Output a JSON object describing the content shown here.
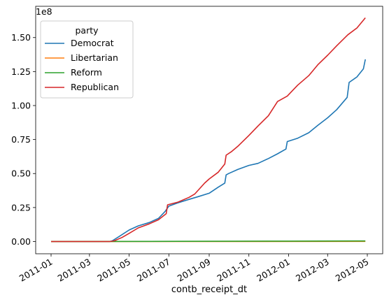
{
  "chart_data": {
    "type": "line",
    "title": "",
    "xlabel": "contb_receipt_dt",
    "ylabel": "",
    "y_offset_label": "1e8",
    "xlim": [
      "2011-01-01",
      "2012-05-01"
    ],
    "ylim": [
      -0.09,
      1.73
    ],
    "x_ticks": [
      "2011-01-01",
      "2011-03-01",
      "2011-05-01",
      "2011-07-01",
      "2011-09-01",
      "2011-11-01",
      "2012-01-01",
      "2012-03-01",
      "2012-05-01"
    ],
    "x_tick_labels": [
      "2011-01",
      "2011-03",
      "2011-05",
      "2011-07",
      "2011-09",
      "2011-11",
      "2012-01",
      "2012-03",
      "2012-05"
    ],
    "y_ticks": [
      0.0,
      0.25,
      0.5,
      0.75,
      1.0,
      1.25,
      1.5
    ],
    "y_tick_labels": [
      "0.00",
      "0.25",
      "0.50",
      "0.75",
      "1.00",
      "1.25",
      "1.50"
    ],
    "grid": false,
    "legend": {
      "title": "party",
      "placement": "top-left"
    },
    "series": [
      {
        "name": "Democrat",
        "color": "#1f77b4",
        "points": [
          [
            "2011-01-01",
            0.0
          ],
          [
            "2011-04-01",
            0.0
          ],
          [
            "2011-04-05",
            0.005
          ],
          [
            "2011-04-15",
            0.035
          ],
          [
            "2011-05-01",
            0.085
          ],
          [
            "2011-05-15",
            0.115
          ],
          [
            "2011-06-01",
            0.14
          ],
          [
            "2011-06-15",
            0.17
          ],
          [
            "2011-06-25",
            0.22
          ],
          [
            "2011-07-01",
            0.26
          ],
          [
            "2011-07-15",
            0.285
          ],
          [
            "2011-08-01",
            0.31
          ],
          [
            "2011-08-15",
            0.33
          ],
          [
            "2011-09-01",
            0.355
          ],
          [
            "2011-09-15",
            0.4
          ],
          [
            "2011-09-25",
            0.43
          ],
          [
            "2011-09-27",
            0.49
          ],
          [
            "2011-10-01",
            0.5
          ],
          [
            "2011-10-15",
            0.53
          ],
          [
            "2011-11-01",
            0.56
          ],
          [
            "2011-11-15",
            0.575
          ],
          [
            "2011-12-01",
            0.61
          ],
          [
            "2011-12-15",
            0.645
          ],
          [
            "2011-12-28",
            0.68
          ],
          [
            "2011-12-30",
            0.735
          ],
          [
            "2012-01-15",
            0.76
          ],
          [
            "2012-02-01",
            0.8
          ],
          [
            "2012-02-15",
            0.855
          ],
          [
            "2012-03-01",
            0.91
          ],
          [
            "2012-03-15",
            0.97
          ],
          [
            "2012-03-31",
            1.06
          ],
          [
            "2012-04-03",
            1.17
          ],
          [
            "2012-04-15",
            1.21
          ],
          [
            "2012-04-25",
            1.27
          ],
          [
            "2012-04-28",
            1.34
          ]
        ]
      },
      {
        "name": "Libertarian",
        "color": "#ff7f0e",
        "points": [
          [
            "2011-01-01",
            0.0
          ],
          [
            "2011-06-01",
            0.0
          ],
          [
            "2012-04-28",
            0.001
          ]
        ]
      },
      {
        "name": "Reform",
        "color": "#2ca02c",
        "points": [
          [
            "2011-01-01",
            0.0
          ],
          [
            "2011-06-01",
            0.001
          ],
          [
            "2011-10-01",
            0.002
          ],
          [
            "2012-01-01",
            0.003
          ],
          [
            "2012-04-28",
            0.004
          ]
        ]
      },
      {
        "name": "Republican",
        "color": "#d62728",
        "points": [
          [
            "2011-01-01",
            0.0
          ],
          [
            "2011-04-01",
            0.0
          ],
          [
            "2011-04-08",
            0.005
          ],
          [
            "2011-04-20",
            0.03
          ],
          [
            "2011-05-01",
            0.06
          ],
          [
            "2011-05-15",
            0.1
          ],
          [
            "2011-06-01",
            0.13
          ],
          [
            "2011-06-15",
            0.16
          ],
          [
            "2011-06-27",
            0.205
          ],
          [
            "2011-06-29",
            0.27
          ],
          [
            "2011-07-15",
            0.29
          ],
          [
            "2011-08-01",
            0.325
          ],
          [
            "2011-08-10",
            0.35
          ],
          [
            "2011-08-25",
            0.43
          ],
          [
            "2011-09-01",
            0.46
          ],
          [
            "2011-09-15",
            0.51
          ],
          [
            "2011-09-25",
            0.57
          ],
          [
            "2011-09-27",
            0.635
          ],
          [
            "2011-10-05",
            0.66
          ],
          [
            "2011-10-15",
            0.7
          ],
          [
            "2011-11-01",
            0.78
          ],
          [
            "2011-11-15",
            0.85
          ],
          [
            "2011-12-01",
            0.925
          ],
          [
            "2011-12-15",
            1.03
          ],
          [
            "2011-12-30",
            1.07
          ],
          [
            "2012-01-15",
            1.15
          ],
          [
            "2012-02-01",
            1.22
          ],
          [
            "2012-02-15",
            1.3
          ],
          [
            "2012-03-01",
            1.37
          ],
          [
            "2012-03-15",
            1.44
          ],
          [
            "2012-04-01",
            1.52
          ],
          [
            "2012-04-15",
            1.57
          ],
          [
            "2012-04-28",
            1.645
          ]
        ]
      }
    ]
  }
}
